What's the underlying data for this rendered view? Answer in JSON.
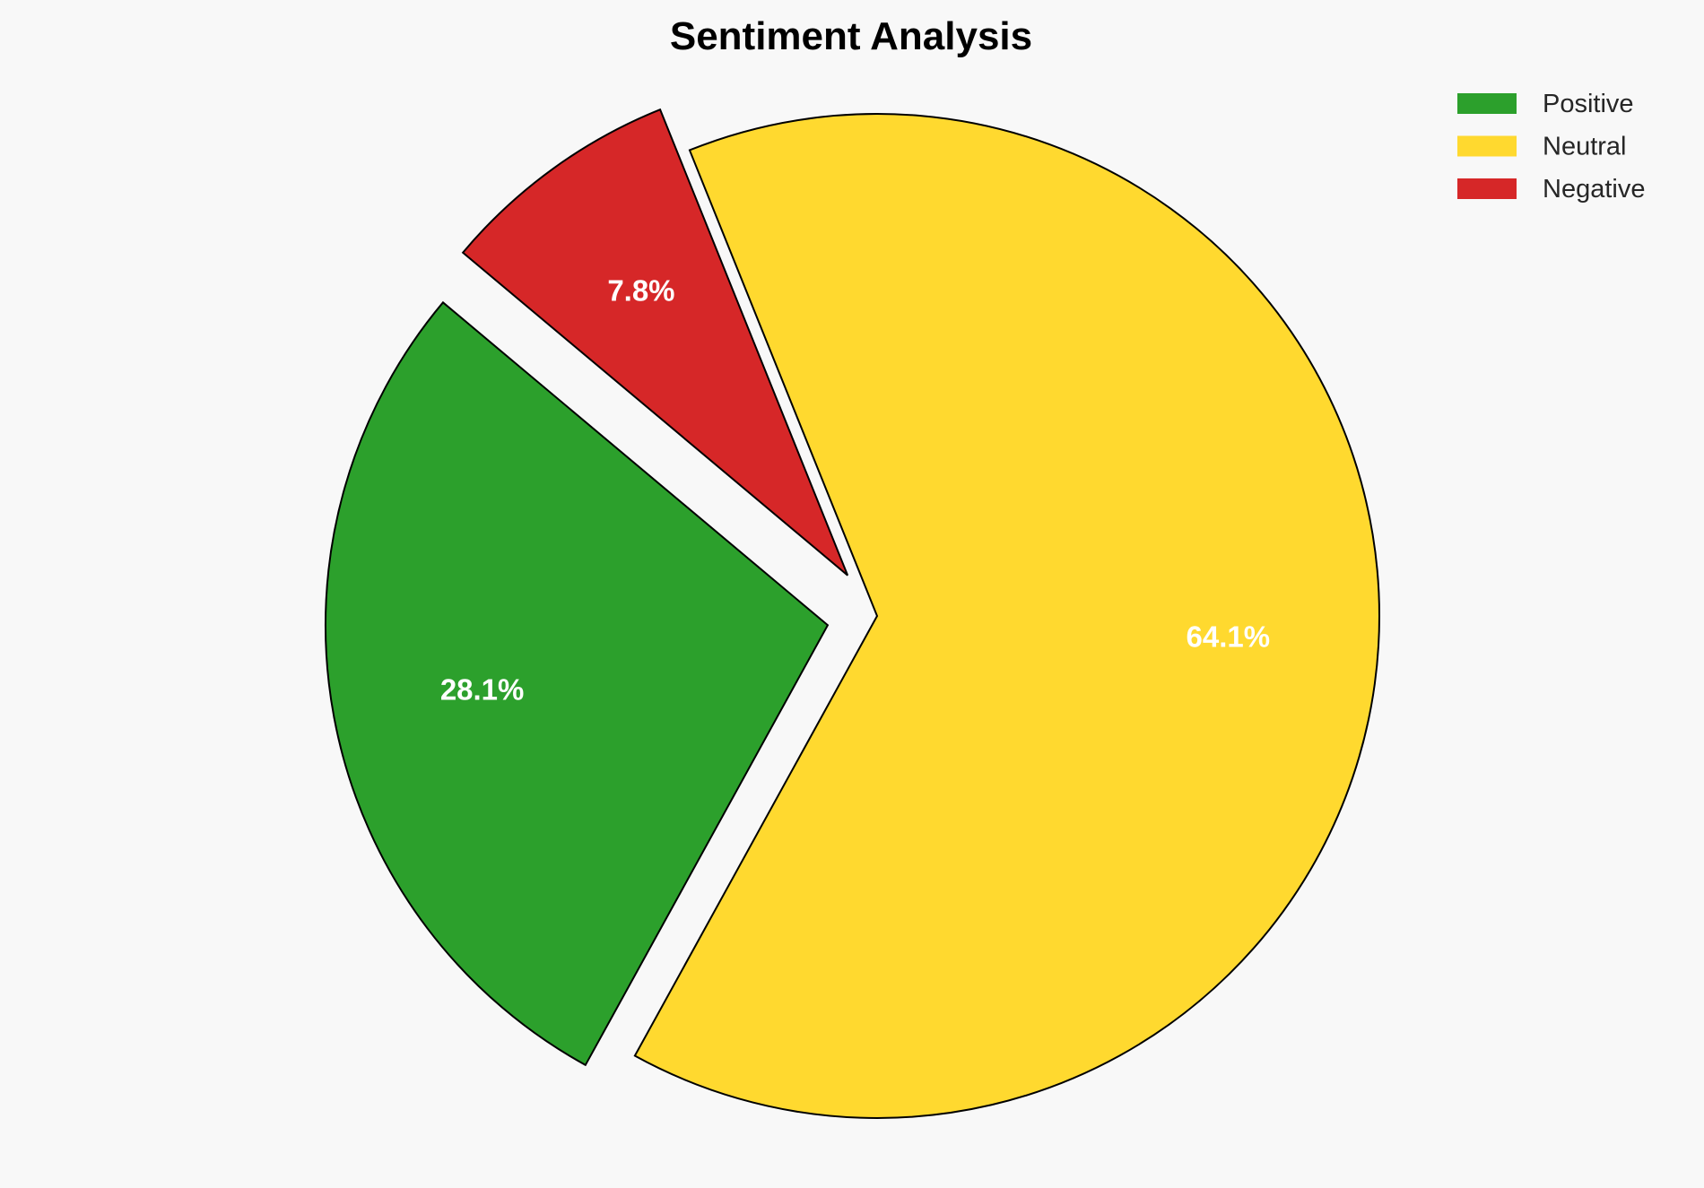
{
  "chart_data": {
    "type": "pie",
    "title": "Sentiment Analysis",
    "categories": [
      "Positive",
      "Neutral",
      "Negative"
    ],
    "values": [
      28.1,
      64.1,
      7.8
    ],
    "labels": [
      "28.1%",
      "64.1%",
      "7.8%"
    ],
    "colors": [
      "#2ca02c",
      "#ffd92f",
      "#d62728"
    ],
    "explode": [
      0.1,
      0,
      0.1
    ],
    "start_angle": 140,
    "legend_placement": "top-right",
    "background": "#f8f8f8"
  }
}
